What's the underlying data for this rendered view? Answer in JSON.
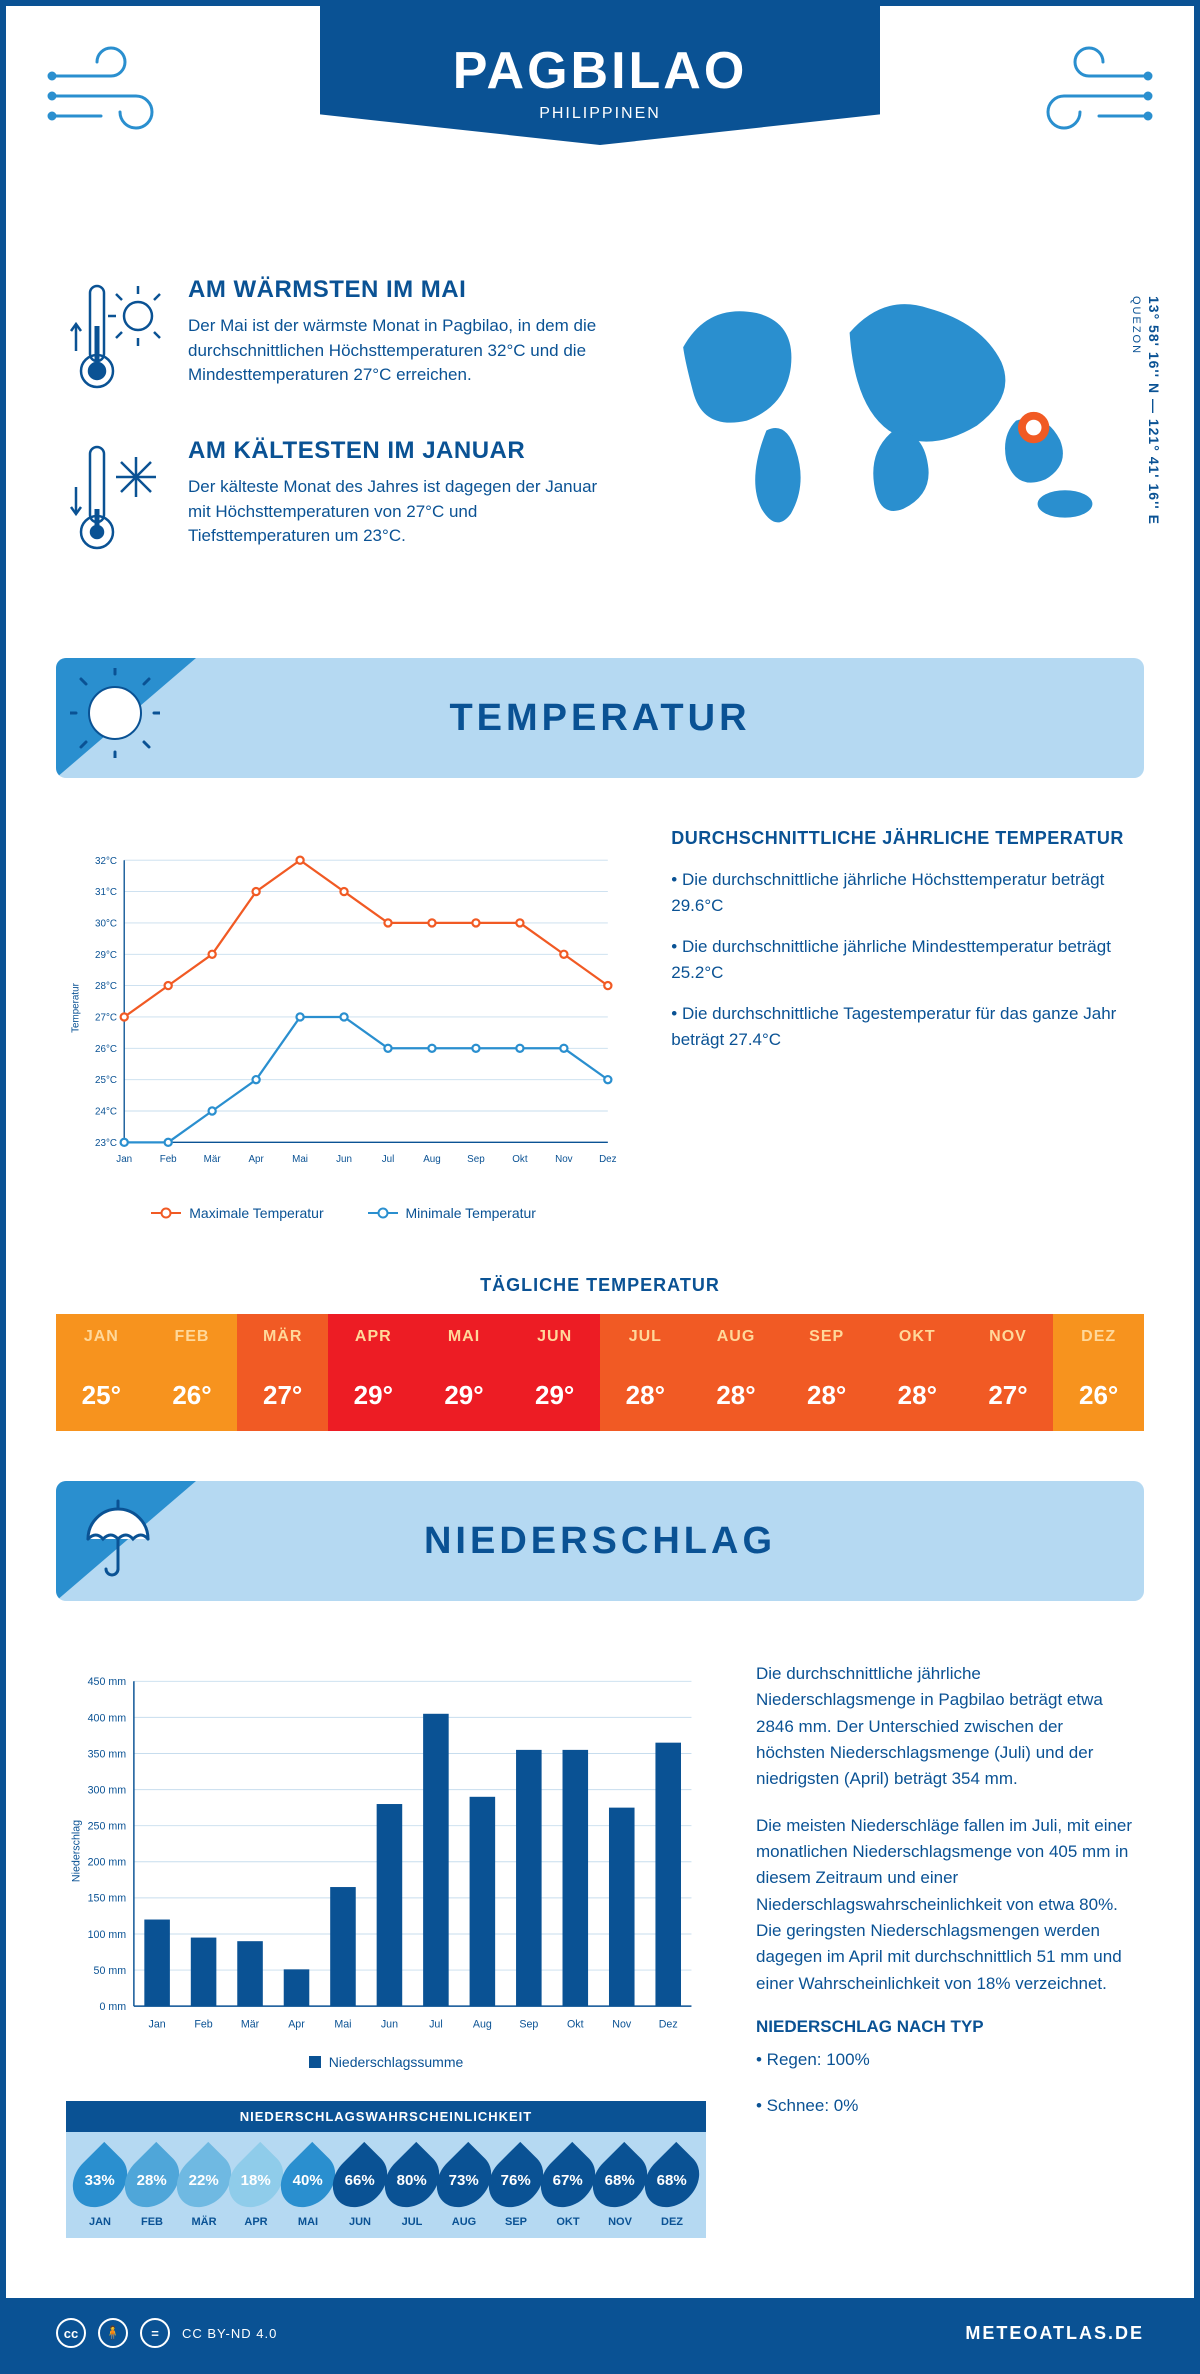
{
  "header": {
    "title": "PAGBILAO",
    "subtitle": "PHILIPPINEN",
    "coords": "13° 58' 16'' N — 121° 41' 16'' E",
    "region": "QUEZON"
  },
  "colors": {
    "primary": "#0a5294",
    "light_blue": "#b5d9f2",
    "mid_blue": "#2a8fcf",
    "orange": "#f15a24",
    "white": "#ffffff"
  },
  "intro": {
    "warm": {
      "title": "AM WÄRMSTEN IM MAI",
      "text": "Der Mai ist der wärmste Monat in Pagbilao, in dem die durchschnittlichen Höchsttemperaturen 32°C und die Mindesttemperaturen 27°C erreichen."
    },
    "cold": {
      "title": "AM KÄLTESTEN IM JANUAR",
      "text": "Der kälteste Monat des Jahres ist dagegen der Januar mit Höchsttemperaturen von 27°C und Tiefsttemperaturen um 23°C."
    }
  },
  "months": [
    "Jan",
    "Feb",
    "Mär",
    "Apr",
    "Mai",
    "Jun",
    "Jul",
    "Aug",
    "Sep",
    "Okt",
    "Nov",
    "Dez"
  ],
  "months_caps": [
    "JAN",
    "FEB",
    "MÄR",
    "APR",
    "MAI",
    "JUN",
    "JUL",
    "AUG",
    "SEP",
    "OKT",
    "NOV",
    "DEZ"
  ],
  "temperature": {
    "section_title": "TEMPERATUR",
    "chart": {
      "type": "line",
      "y_label": "Temperatur",
      "ylim": [
        23,
        32
      ],
      "ytick_step": 1,
      "y_ticks": [
        "23°C",
        "24°C",
        "25°C",
        "26°C",
        "27°C",
        "28°C",
        "29°C",
        "30°C",
        "31°C",
        "32°C"
      ],
      "series": [
        {
          "name": "Maximale Temperatur",
          "color": "#f15a24",
          "values": [
            27,
            28,
            29,
            31,
            32,
            31,
            30,
            30,
            30,
            30,
            29,
            28
          ]
        },
        {
          "name": "Minimale Temperatur",
          "color": "#2a8fcf",
          "values": [
            23,
            23,
            24,
            25,
            27,
            27,
            26,
            26,
            26,
            26,
            26,
            25
          ]
        }
      ],
      "legend": {
        "max": "Maximale Temperatur",
        "min": "Minimale Temperatur"
      }
    },
    "text": {
      "heading": "DURCHSCHNITTLICHE JÄHRLICHE TEMPERATUR",
      "b1": "• Die durchschnittliche jährliche Höchsttemperatur beträgt 29.6°C",
      "b2": "• Die durchschnittliche jährliche Mindesttemperatur beträgt 25.2°C",
      "b3": "• Die durchschnittliche Tagestemperatur für das ganze Jahr beträgt 27.4°C"
    },
    "daily": {
      "title": "TÄGLICHE TEMPERATUR",
      "values": [
        "25°",
        "26°",
        "27°",
        "29°",
        "29°",
        "29°",
        "28°",
        "28°",
        "28°",
        "28°",
        "27°",
        "26°"
      ],
      "head_colors": [
        "#f7931e",
        "#f7931e",
        "#f15a24",
        "#ed1c24",
        "#ed1c24",
        "#ed1c24",
        "#f15a24",
        "#f15a24",
        "#f15a24",
        "#f15a24",
        "#f15a24",
        "#f7931e"
      ],
      "head_text_color": "#ffd89a",
      "val_colors": [
        "#f7931e",
        "#f7931e",
        "#f15a24",
        "#ed1c24",
        "#ed1c24",
        "#ed1c24",
        "#f15a24",
        "#f15a24",
        "#f15a24",
        "#f15a24",
        "#f15a24",
        "#f7931e"
      ]
    }
  },
  "precip": {
    "section_title": "NIEDERSCHLAG",
    "chart": {
      "type": "bar",
      "y_label": "Niederschlag",
      "ylim": [
        0,
        450
      ],
      "ytick_step": 50,
      "y_ticks": [
        "0 mm",
        "50 mm",
        "100 mm",
        "150 mm",
        "200 mm",
        "250 mm",
        "300 mm",
        "350 mm",
        "400 mm",
        "450 mm"
      ],
      "bar_color": "#0a5294",
      "values": [
        120,
        95,
        90,
        51,
        165,
        280,
        405,
        290,
        355,
        355,
        275,
        365
      ],
      "legend": "Niederschlagssumme"
    },
    "text": {
      "p1": "Die durchschnittliche jährliche Niederschlagsmenge in Pagbilao beträgt etwa 2846 mm. Der Unterschied zwischen der höchsten Niederschlagsmenge (Juli) und der niedrigsten (April) beträgt 354 mm.",
      "p2": "Die meisten Niederschläge fallen im Juli, mit einer monatlichen Niederschlagsmenge von 405 mm in diesem Zeitraum und einer Niederschlagswahrscheinlichkeit von etwa 80%. Die geringsten Niederschlagsmengen werden dagegen im April mit durchschnittlich 51 mm und einer Wahrscheinlichkeit von 18% verzeichnet.",
      "type_heading": "NIEDERSCHLAG NACH TYP",
      "type_b1": "• Regen: 100%",
      "type_b2": "• Schnee: 0%"
    },
    "probability": {
      "title": "NIEDERSCHLAGSWAHRSCHEINLICHKEIT",
      "values": [
        "33%",
        "28%",
        "22%",
        "18%",
        "40%",
        "66%",
        "80%",
        "73%",
        "76%",
        "67%",
        "68%",
        "68%"
      ],
      "colors": [
        "#2a8fcf",
        "#4fa6d9",
        "#6fb9e2",
        "#8fccea",
        "#2a8fcf",
        "#0a5294",
        "#0a5294",
        "#0a5294",
        "#0a5294",
        "#0a5294",
        "#0a5294",
        "#0a5294"
      ]
    }
  },
  "footer": {
    "license": "CC BY-ND 4.0",
    "brand": "METEOATLAS.DE"
  }
}
